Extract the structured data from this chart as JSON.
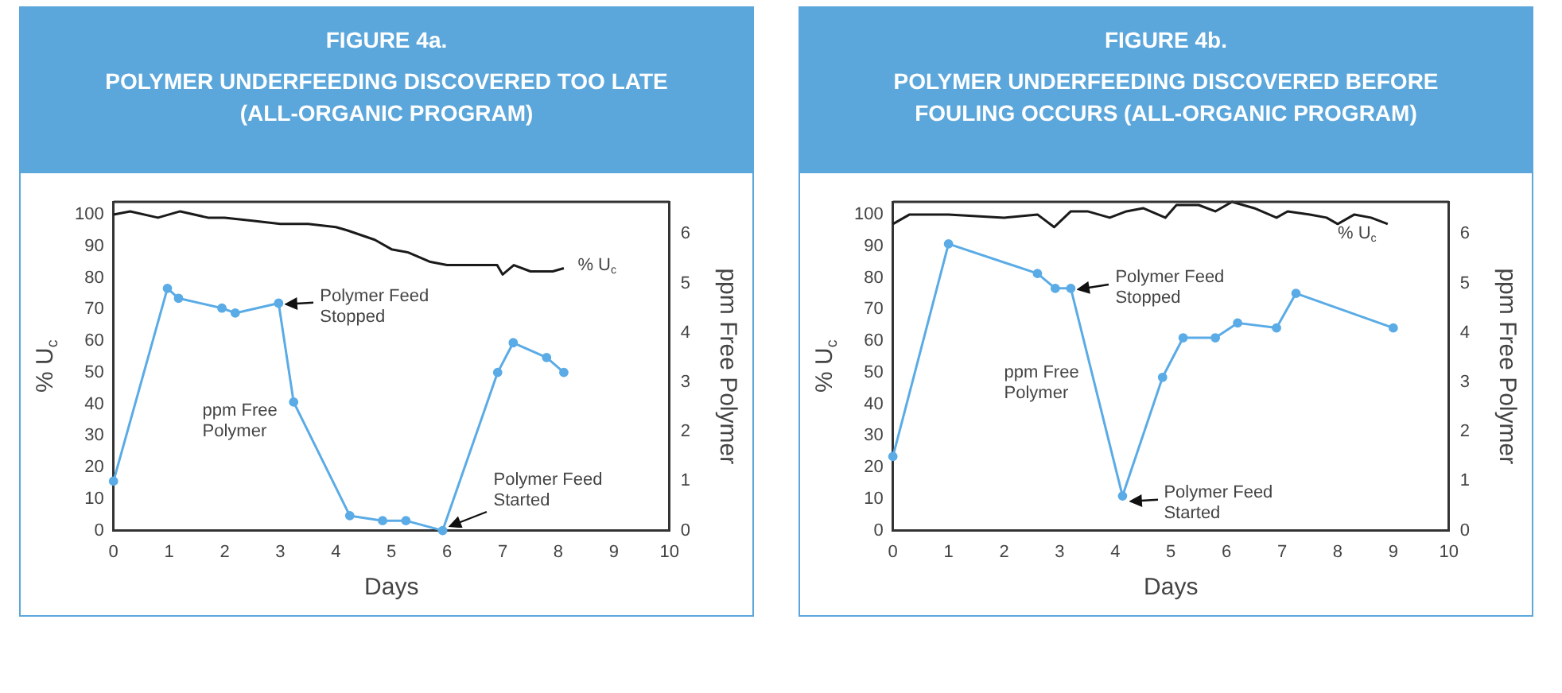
{
  "chart_data": [
    {
      "type": "line",
      "title": "FIGURE 4a.",
      "subtitle": "POLYMER UNDERFEEDING DISCOVERED TOO LATE (ALL-ORGANIC PROGRAM)",
      "xlabel": "Days",
      "ylabel": "% U$_{c}$",
      "y2label": "ppm Free Polymer",
      "xlim": [
        0,
        10
      ],
      "xticks": [
        0,
        1,
        2,
        3,
        4,
        5,
        6,
        7,
        8,
        9,
        10
      ],
      "ylim": [
        0,
        104
      ],
      "yticks": [
        0,
        10,
        20,
        30,
        40,
        50,
        60,
        70,
        80,
        90,
        100
      ],
      "y2lim": [
        0,
        6.65
      ],
      "y2ticks": [
        0,
        1,
        2,
        3,
        4,
        5,
        6
      ],
      "grid": false,
      "legend": false,
      "series": [
        {
          "name": "% U$_{c}$",
          "color": "#1a1a1a",
          "marker": "none",
          "x": [
            0,
            0.3,
            0.8,
            1.2,
            1.7,
            2.0,
            2.5,
            3.0,
            3.5,
            4.0,
            4.2,
            4.7,
            5.0,
            5.3,
            5.7,
            6.0,
            6.5,
            6.9,
            7.0,
            7.2,
            7.5,
            7.9,
            8.1
          ],
          "values": [
            100,
            101,
            99,
            101,
            99,
            99,
            98,
            97,
            97,
            96,
            95,
            92,
            89,
            88,
            85,
            84,
            84,
            84,
            81,
            84,
            82,
            82,
            83
          ]
        },
        {
          "name": "ppm Free Polymer",
          "color": "#5aabe6",
          "marker": "circle",
          "axis": "y2",
          "x": [
            0,
            0.97,
            1.17,
            1.95,
            2.19,
            2.97,
            3.24,
            4.25,
            4.84,
            5.26,
            5.92,
            6.91,
            7.19,
            7.79,
            8.1
          ],
          "values": [
            1.0,
            4.9,
            4.7,
            4.5,
            4.4,
            4.6,
            2.6,
            0.3,
            0.2,
            0.2,
            0.0,
            3.2,
            3.8,
            3.5,
            3.2
          ]
        }
      ],
      "annotations": [
        {
          "text": "Polymer Feed Stopped",
          "x": 2.97,
          "y": 72
        },
        {
          "text": "Polymer Feed Started",
          "x": 5.92,
          "y": 0
        }
      ]
    },
    {
      "type": "line",
      "title": "FIGURE 4b.",
      "subtitle": "POLYMER UNDERFEEDING DISCOVERED BEFORE FOULING OCCURS (ALL-ORGANIC PROGRAM)",
      "xlabel": "Days",
      "ylabel": "% U$_{c}$",
      "y2label": "ppm Free Polymer",
      "xlim": [
        0,
        10
      ],
      "xticks": [
        0,
        1,
        2,
        3,
        4,
        5,
        6,
        7,
        8,
        9,
        10
      ],
      "ylim": [
        0,
        104
      ],
      "yticks": [
        0,
        10,
        20,
        30,
        40,
        50,
        60,
        70,
        80,
        90,
        100
      ],
      "y2lim": [
        0,
        6.65
      ],
      "y2ticks": [
        0,
        1,
        2,
        3,
        4,
        5,
        6
      ],
      "grid": false,
      "legend": false,
      "series": [
        {
          "name": "% U$_{c}$",
          "color": "#1a1a1a",
          "marker": "none",
          "x": [
            0,
            0.3,
            1.0,
            2.0,
            2.6,
            2.9,
            3.2,
            3.5,
            3.9,
            4.2,
            4.5,
            4.9,
            5.1,
            5.5,
            5.8,
            6.1,
            6.5,
            6.9,
            7.1,
            7.5,
            7.8,
            8.0,
            8.3,
            8.6,
            8.9
          ],
          "values": [
            97,
            100,
            100,
            99,
            100,
            96,
            101,
            101,
            99,
            101,
            102,
            99,
            103,
            103,
            101,
            104,
            102,
            99,
            101,
            100,
            99,
            97,
            100,
            99,
            97
          ]
        },
        {
          "name": "ppm Free Polymer",
          "color": "#5aabe6",
          "marker": "circle",
          "axis": "y2",
          "x": [
            0,
            1.0,
            2.6,
            2.92,
            3.2,
            4.13,
            4.85,
            5.22,
            5.8,
            6.2,
            6.9,
            7.25,
            9.0
          ],
          "values": [
            1.5,
            5.8,
            5.2,
            4.9,
            4.9,
            0.7,
            3.1,
            3.9,
            3.9,
            4.2,
            4.1,
            4.8,
            4.1
          ]
        }
      ],
      "annotations": [
        {
          "text": "Polymer Feed Stopped",
          "x": 3.2,
          "y": 77
        },
        {
          "text": "Polymer Feed Started",
          "x": 4.13,
          "y": 10
        }
      ]
    }
  ]
}
